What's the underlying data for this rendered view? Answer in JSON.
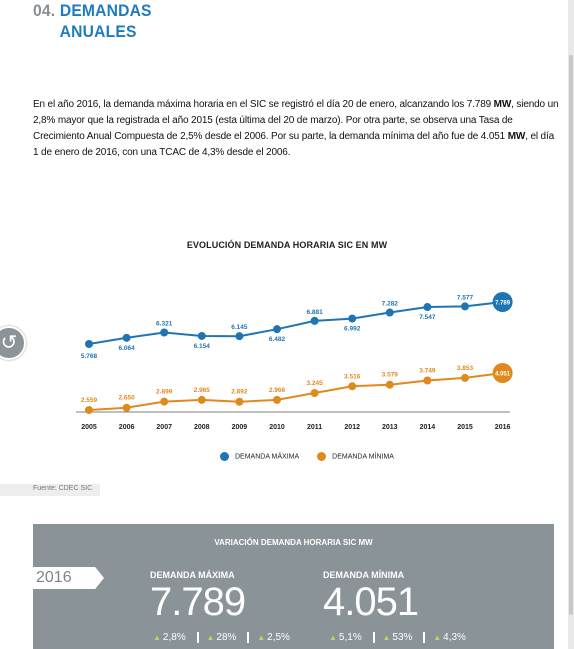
{
  "header": {
    "number": "04.",
    "title_line1": "DEMANDAS",
    "title_line2": "ANUALES"
  },
  "intro": {
    "p1": "En el año 2016, la demanda máxima horaria en el SIC se registró el día 20 de enero, alcanzando los 7.789 ",
    "b1": "MW",
    "p2": ", siendo un 2,8% mayor que la registrada el año 2015 (esta última del 20 de marzo). Por otra parte, se observa una Tasa de Crecimiento Anual Compuesta de 2,5% desde el 2006. Por su parte, la demanda mínima del año fue de 4.051 ",
    "b2": "MW",
    "p3": ", el día 1 de enero de 2016, con una TCAC de 4,3% desde el 2006."
  },
  "chart_data": {
    "type": "line",
    "title": "EVOLUCIÓN DEMANDA HORARIA SIC EN MW",
    "categories": [
      "2005",
      "2006",
      "2007",
      "2008",
      "2009",
      "2010",
      "2011",
      "2012",
      "2013",
      "2014",
      "2015",
      "2016"
    ],
    "series": [
      {
        "name": "DEMANDA MÁXIMA",
        "color": "#1f74b4",
        "values": [
          5768,
          6064,
          6321,
          6154,
          6145,
          6482,
          6881,
          6992,
          7282,
          7547,
          7577,
          7789
        ],
        "labels": [
          "5.768",
          "6.064",
          "6.321",
          "6.154",
          "6.145",
          "6.482",
          "6.881",
          "6.992",
          "7.282",
          "7.547",
          "7.577",
          "7.789"
        ]
      },
      {
        "name": "DEMANDA MÍNIMA",
        "color": "#e08a1e",
        "values": [
          2559,
          2650,
          2899,
          2965,
          2892,
          2966,
          3245,
          3516,
          3579,
          3749,
          3853,
          4051
        ],
        "labels": [
          "2.559",
          "2.650",
          "2.899",
          "2.965",
          "2.892",
          "2.966",
          "3.245",
          "3.516",
          "3.579",
          "3.749",
          "3.853",
          "4.051"
        ]
      }
    ],
    "legend": "bottom-center",
    "grid": false
  },
  "source": "Fuente: CDEC SIC",
  "panel": {
    "title": "VARIACIÓN DEMANDA HORARIA SIC MW",
    "year": "2016",
    "max_label": "DEMANDA MÁXIMA",
    "max_value": "7.789",
    "max_stats": [
      "2,8%",
      "28%",
      "2,5%"
    ],
    "min_label": "DEMANDA MÍNIMA",
    "min_value": "4.051",
    "min_stats": [
      "5,1%",
      "53%",
      "4,3%"
    ]
  }
}
